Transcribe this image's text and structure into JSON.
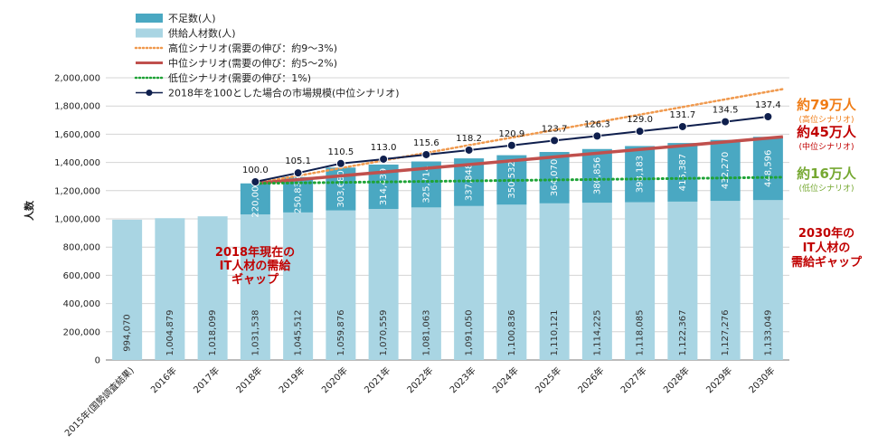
{
  "chart_data": {
    "type": "bar",
    "ylabel": "人数",
    "ylim": [
      0,
      2000000
    ],
    "yticks": [
      "0",
      "200,000",
      "400,000",
      "600,000",
      "800,000",
      "1,000,000",
      "1,200,000",
      "1,400,000",
      "1,600,000",
      "1,800,000",
      "2,000,000"
    ],
    "categories": [
      "2015年(国勢調査結果)",
      "2016年",
      "2017年",
      "2018年",
      "2019年",
      "2020年",
      "2021年",
      "2022年",
      "2023年",
      "2024年",
      "2025年",
      "2026年",
      "2027年",
      "2028年",
      "2029年",
      "2030年"
    ],
    "supply": {
      "name": "供給人材数(人)",
      "color": "#a9d5e3",
      "values": [
        994070,
        1004879,
        1018099,
        1031538,
        1045512,
        1059876,
        1070559,
        1081063,
        1091050,
        1100836,
        1110121,
        1114225,
        1118085,
        1122367,
        1127276,
        1133049
      ],
      "labels": [
        "994,070",
        "1,004,879",
        "1,018,099",
        "1,031,538",
        "1,045,512",
        "1,059,876",
        "1,070,559",
        "1,081,063",
        "1,091,050",
        "1,100,836",
        "1,110,121",
        "1,114,225",
        "1,118,085",
        "1,122,367",
        "1,127,276",
        "1,133,049"
      ]
    },
    "shortage": {
      "name": "不足数(人)",
      "color": "#4aa8c2",
      "values": [
        null,
        null,
        null,
        220000,
        250835,
        303680,
        314439,
        325714,
        337848,
        350532,
        364070,
        380856,
        398183,
        415387,
        432270,
        448596
      ],
      "labels": [
        "",
        "",
        "",
        "220,000",
        "250,835",
        "303,680",
        "314,439",
        "325,714",
        "337,848",
        "350,532",
        "364,070",
        "380,856",
        "398,183",
        "415,387",
        "432,270",
        "448,596"
      ]
    },
    "scenarios": {
      "high": {
        "name": "高位シナリオ(需要の伸び：約9〜3%)",
        "color": "#f0994d",
        "start": 1251538,
        "end": 1920000
      },
      "mid": {
        "name": "中位シナリオ(需要の伸び：約5〜2%)",
        "color": "#c0504d",
        "start": 1251538,
        "end": 1581645
      },
      "low": {
        "name": "低位シナリオ(需要の伸び：1%)",
        "color": "#1ea336",
        "start": 1251538,
        "end": 1295000
      }
    },
    "market_index": {
      "name": "2018年を100とした場合の市場規模(中位シナリオ)",
      "color": "#0f1f4d",
      "values": [
        null,
        null,
        null,
        100.0,
        105.1,
        110.5,
        113.0,
        115.6,
        118.2,
        120.9,
        123.7,
        126.3,
        129.0,
        131.7,
        134.5,
        137.4
      ],
      "labels": [
        "",
        "",
        "",
        "100.0",
        "105.1",
        "110.5",
        "113.0",
        "115.6",
        "118.2",
        "120.9",
        "123.7",
        "126.3",
        "129.0",
        "131.7",
        "134.5",
        "137.4"
      ]
    },
    "annotations": {
      "high_big": "約79万人",
      "high_sub": "(高位シナリオ)",
      "high_color": "#f07d17",
      "mid_big": "約45万人",
      "mid_sub": "(中位シナリオ)",
      "mid_color": "#c00000",
      "low_big": "約16万人",
      "low_sub": "(低位シナリオ)",
      "low_color": "#76a832",
      "gap2018": [
        "2018年現在の",
        "IT人材の需給",
        "ギャップ"
      ],
      "gap2030": [
        "2030年の",
        "IT人材の",
        "需給ギャップ"
      ]
    }
  }
}
